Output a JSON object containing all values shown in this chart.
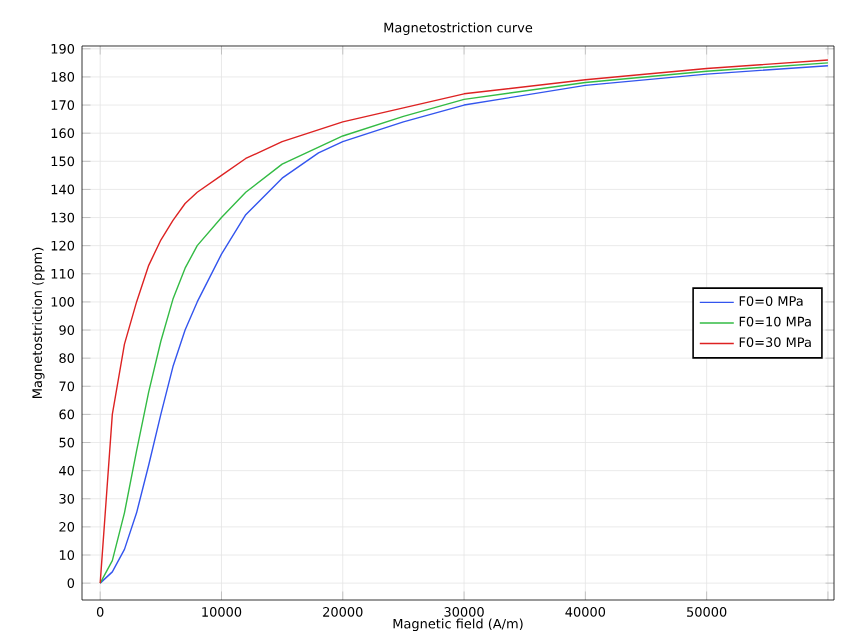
{
  "chart_data": {
    "type": "line",
    "title": "Magnetostriction curve",
    "xlabel": "Magnetic field (A/m)",
    "ylabel": "Magnetostriction (ppm)",
    "xlim": [
      -1500,
      60500
    ],
    "ylim": [
      -6,
      191
    ],
    "xticks": [
      0,
      10000,
      20000,
      30000,
      40000,
      50000,
      {
        "value": 60000,
        "label": null
      }
    ],
    "yticks": [
      0,
      10,
      20,
      30,
      40,
      50,
      60,
      70,
      80,
      90,
      100,
      110,
      120,
      130,
      140,
      150,
      160,
      170,
      180,
      190
    ],
    "grid": true,
    "legend": "right",
    "line_style": "solid",
    "marker": "none",
    "series": [
      {
        "name": "F0=0 MPa",
        "color": "#3355ee",
        "x": [
          0,
          1000,
          2000,
          3000,
          4000,
          5000,
          6000,
          7000,
          8000,
          10000,
          12000,
          15000,
          18000,
          20000,
          25000,
          30000,
          40000,
          50000,
          60000
        ],
        "values": [
          0,
          4,
          12,
          25,
          42,
          60,
          77,
          90,
          100,
          117,
          131,
          144,
          153,
          157,
          164,
          170,
          177,
          181,
          184
        ]
      },
      {
        "name": "F0=10 MPa",
        "color": "#33bb44",
        "x": [
          0,
          1000,
          2000,
          3000,
          4000,
          5000,
          6000,
          7000,
          8000,
          10000,
          12000,
          15000,
          20000,
          25000,
          30000,
          40000,
          50000,
          60000
        ],
        "values": [
          0,
          8,
          25,
          47,
          68,
          86,
          101,
          112,
          120,
          130,
          139,
          149,
          159,
          166,
          172,
          178,
          182,
          185
        ]
      },
      {
        "name": "F0=30 MPa",
        "color": "#dd2222",
        "x": [
          0,
          500,
          1000,
          2000,
          3000,
          4000,
          5000,
          6000,
          7000,
          8000,
          10000,
          12000,
          15000,
          20000,
          25000,
          30000,
          40000,
          50000,
          60000
        ],
        "values": [
          0,
          30,
          60,
          85,
          100,
          113,
          122,
          129,
          135,
          139,
          145,
          151,
          157,
          164,
          169,
          174,
          179,
          183,
          186
        ]
      }
    ]
  }
}
